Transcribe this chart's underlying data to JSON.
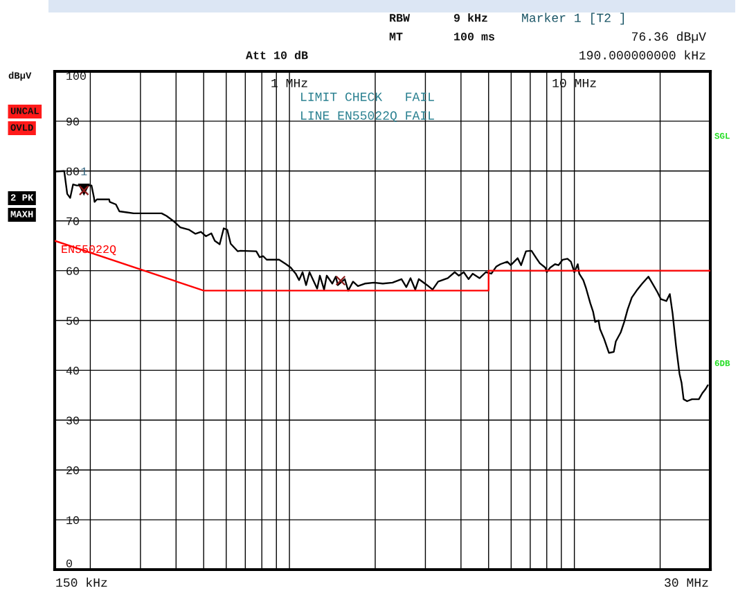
{
  "chart_data": {
    "type": "line",
    "ylabel": "dBµV",
    "log": "x",
    "grid": true,
    "xlim": [
      0.15,
      30
    ],
    "xticks": [
      {
        "value": 0.2,
        "label": null
      },
      {
        "value": 0.3,
        "label": null
      },
      {
        "value": 0.4,
        "label": null
      },
      {
        "value": 0.5,
        "label": null
      },
      {
        "value": 0.6,
        "label": null
      },
      {
        "value": 0.7,
        "label": null
      },
      {
        "value": 0.8,
        "label": null
      },
      {
        "value": 0.9,
        "label": null
      },
      {
        "value": 1,
        "label": "1 MHz"
      },
      {
        "value": 2,
        "label": null
      },
      {
        "value": 3,
        "label": null
      },
      {
        "value": 4,
        "label": null
      },
      {
        "value": 5,
        "label": null
      },
      {
        "value": 6,
        "label": null
      },
      {
        "value": 7,
        "label": null
      },
      {
        "value": 8,
        "label": null
      },
      {
        "value": 9,
        "label": null
      },
      {
        "value": 10,
        "label": "10 MHz"
      },
      {
        "value": 20,
        "label": null
      }
    ],
    "ylim": [
      0,
      100
    ],
    "yticks": [
      0,
      10,
      20,
      30,
      40,
      50,
      60,
      70,
      80,
      90,
      100
    ],
    "series": [
      {
        "color": "#000000",
        "x": [
          0.151,
          0.162,
          0.166,
          0.17,
          0.174,
          0.179,
          0.189,
          0.202,
          0.206,
          0.207,
          0.211,
          0.214,
          0.233,
          0.234,
          0.246,
          0.253,
          0.269,
          0.284,
          0.356,
          0.37,
          0.391,
          0.414,
          0.445,
          0.468,
          0.489,
          0.509,
          0.532,
          0.547,
          0.569,
          0.588,
          0.605,
          0.622,
          0.658,
          0.673,
          0.765,
          0.786,
          0.809,
          0.832,
          0.92,
          0.973,
          1.011,
          1.052,
          1.081,
          1.112,
          1.144,
          1.176,
          1.196,
          1.251,
          1.279,
          1.323,
          1.352,
          1.414,
          1.454,
          1.479,
          1.564,
          1.608,
          1.672,
          1.739,
          1.839,
          1.978,
          2.127,
          2.3,
          2.474,
          2.572,
          2.66,
          2.765,
          2.844,
          3.041,
          3.18,
          3.326,
          3.596,
          3.803,
          3.933,
          4.09,
          4.253,
          4.398,
          4.651,
          4.891,
          5.113,
          5.317,
          5.499,
          5.815,
          5.98,
          6.324,
          6.503,
          6.763,
          7.072,
          7.355,
          7.563,
          7.909,
          7.998,
          8.224,
          8.551,
          8.795,
          9.095,
          9.456,
          9.725,
          10.0,
          10.28,
          10.4,
          10.75,
          11.0,
          11.37,
          11.63,
          11.83,
          12.16,
          12.3,
          12.72,
          13.22,
          13.75,
          13.98,
          14.54,
          14.96,
          15.38,
          15.91,
          16.54,
          17.3,
          18.19,
          18.81,
          19.56,
          20.11,
          21.03,
          21.63,
          22.12,
          22.74,
          23.39,
          23.78,
          24.18,
          24.87,
          25.86,
          27.35,
          28.12,
          28.92,
          29.41
        ],
        "values": [
          79.9,
          80.0,
          75.4,
          74.6,
          77.3,
          77.1,
          77.1,
          77.1,
          74.7,
          73.8,
          74.3,
          74.3,
          74.3,
          73.8,
          73.3,
          71.9,
          71.7,
          71.5,
          71.5,
          71.0,
          70.0,
          68.7,
          68.2,
          67.4,
          67.8,
          66.9,
          67.5,
          66.0,
          65.3,
          68.5,
          68.2,
          65.4,
          63.9,
          64.0,
          63.9,
          62.7,
          62.9,
          62.2,
          62.2,
          61.3,
          60.6,
          59.4,
          58.1,
          59.7,
          57.1,
          59.7,
          58.8,
          56.4,
          59.0,
          56.2,
          59.0,
          57.4,
          58.8,
          57.1,
          58.3,
          56.0,
          57.8,
          56.9,
          57.4,
          57.6,
          57.4,
          57.6,
          58.3,
          56.7,
          58.5,
          56.2,
          58.3,
          57.1,
          56.2,
          57.8,
          58.5,
          59.7,
          59.0,
          59.7,
          58.3,
          59.4,
          58.5,
          59.7,
          59.4,
          60.8,
          61.3,
          61.8,
          61.1,
          62.5,
          61.1,
          63.9,
          64.0,
          62.5,
          61.5,
          60.6,
          59.7,
          60.6,
          61.3,
          61.1,
          62.2,
          62.4,
          61.8,
          59.7,
          61.3,
          59.4,
          58.1,
          56.4,
          53.5,
          51.8,
          49.7,
          50.0,
          48.3,
          46.3,
          43.5,
          43.7,
          45.8,
          47.6,
          49.7,
          52.2,
          54.6,
          56.0,
          57.4,
          58.8,
          57.4,
          55.7,
          54.3,
          53.9,
          55.3,
          51.4,
          44.9,
          39.3,
          37.5,
          34.2,
          33.8,
          34.2,
          34.2,
          35.4,
          36.3,
          37.0
        ]
      },
      {
        "name": "EN55022Q",
        "color": "#ff0000",
        "x": [
          0.15,
          0.5,
          5,
          5,
          30
        ],
        "values": [
          66,
          56,
          56,
          60,
          60
        ]
      },
      {
        "type": "scatter",
        "marker": "triangle",
        "color": "#000000",
        "x": [
          0.19
        ],
        "values": [
          76.36
        ]
      },
      {
        "type": "scatter",
        "marker": "cross",
        "color": "#8b1a1a",
        "x": [
          0.19,
          1.512
        ],
        "values": [
          76.1,
          58.0
        ]
      }
    ],
    "annotations": [
      "RBW",
      "9 kHz",
      "Marker 1 [T2 ]",
      "MT",
      "100 ms",
      "76.36 dBµV",
      "Att 10 dB",
      "190.000000000 kHz",
      "UNCAL",
      "OVLD",
      "2 PK",
      "MAXH",
      "SGL",
      "6DB",
      "LIMIT CHECK   FAIL",
      "LINE EN55022Q FAIL",
      "150 kHz",
      "30 MHz",
      {
        "text": "1",
        "x": 0.19,
        "y": 76.36
      }
    ]
  }
}
